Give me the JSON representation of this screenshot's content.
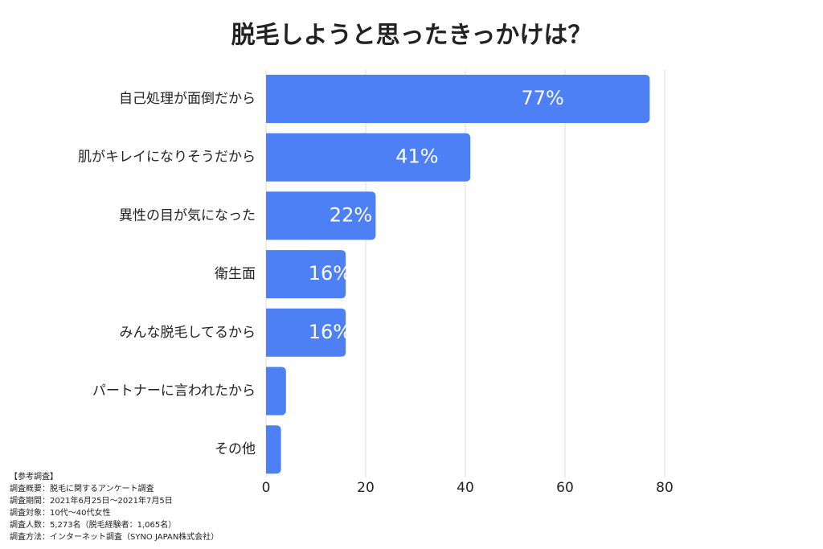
{
  "chart_data": {
    "type": "barh",
    "title": "脱毛しようと思ったきっかけは？",
    "categories": [
      "自己処理が面倒だから",
      "肌がキレイになりそうだから",
      "異性の目が気になった",
      "衛生面",
      "みんな脱毛してるから",
      "パートナーに言われたから",
      "その他"
    ],
    "values": [
      77,
      41,
      22,
      16,
      16,
      4,
      3
    ],
    "value_labels": [
      "77%",
      "41%",
      "22%",
      "16%",
      "16%",
      null,
      null
    ],
    "color": "#4d7ff5",
    "xlim": [
      0,
      80
    ],
    "xticks": [
      0,
      20,
      40,
      60,
      80
    ],
    "grid": true,
    "notes": [
      "【参考調査】",
      "調査概要：脱毛に関するアンケート調査",
      "調査期間：2021年6月25日〜2021年7月5日",
      "調査対象：10代〜40代女性",
      "調査人数：5,273名（脱毛経験者：1,065名）",
      "調査方法：インターネット調査（SYNO JAPAN株式会社）"
    ]
  }
}
